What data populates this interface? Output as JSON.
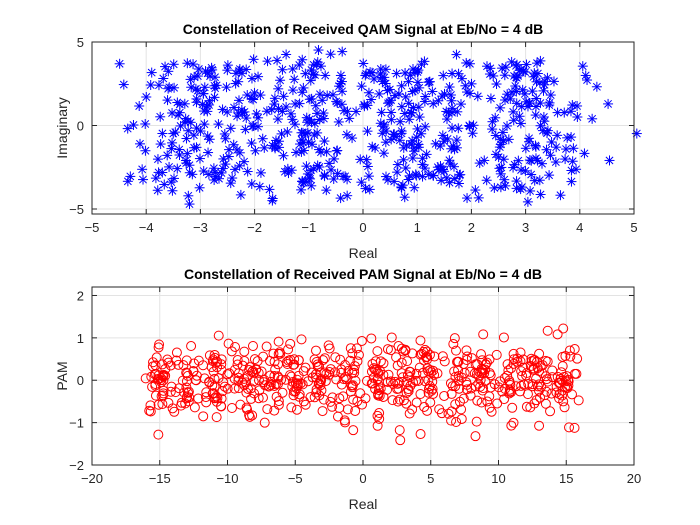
{
  "chart_data": [
    {
      "type": "scatter",
      "title": "Constellation of Received QAM Signal at Eb/No = 4 dB",
      "xlabel": "Real",
      "ylabel": "Imaginary",
      "xlim": [
        -5,
        5
      ],
      "ylim": [
        -5.3,
        5
      ],
      "xticks": [
        -5,
        -4,
        -3,
        -2,
        -1,
        0,
        1,
        2,
        3,
        4,
        5
      ],
      "yticks": [
        -5,
        0,
        5
      ],
      "grid": true,
      "marker": "asterisk",
      "color": "#0000ff",
      "noise_sigma": 0.65,
      "points_per_symbol": 40,
      "series": [
        {
          "symbols": [
            [
              -3,
              -3
            ],
            [
              -3,
              -1
            ],
            [
              -3,
              1
            ],
            [
              -3,
              3
            ],
            [
              -1,
              -3
            ],
            [
              -1,
              -1
            ],
            [
              -1,
              1
            ],
            [
              -1,
              3
            ],
            [
              1,
              -3
            ],
            [
              1,
              -1
            ],
            [
              1,
              1
            ],
            [
              1,
              3
            ],
            [
              3,
              -3
            ],
            [
              3,
              -1
            ],
            [
              3,
              1
            ],
            [
              3,
              3
            ]
          ]
        }
      ]
    },
    {
      "type": "scatter",
      "title": "Constellation of Received PAM Signal at Eb/No = 4 dB",
      "xlabel": "Real",
      "ylabel": "PAM",
      "xlim": [
        -20,
        20
      ],
      "ylim": [
        -2,
        2.2
      ],
      "xticks": [
        -20,
        -15,
        -10,
        -5,
        0,
        5,
        10,
        15,
        20
      ],
      "yticks": [
        -2,
        -1,
        0,
        1,
        2
      ],
      "grid": true,
      "marker": "circle",
      "color": "#ff0000",
      "x_noise_sigma": 0.55,
      "y_noise_sigma": 0.45,
      "points_per_symbol": 40,
      "series": [
        {
          "symbols": [
            -15,
            -13,
            -11,
            -9,
            -7,
            -5,
            -3,
            -1,
            1,
            3,
            5,
            7,
            9,
            11,
            13,
            15
          ]
        }
      ]
    }
  ]
}
